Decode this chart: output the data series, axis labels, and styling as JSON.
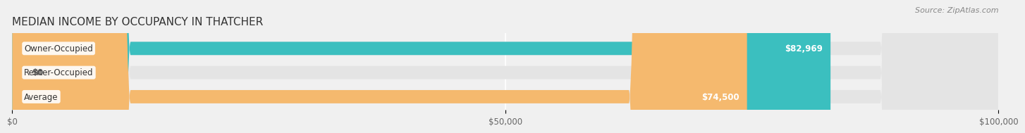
{
  "title": "MEDIAN INCOME BY OCCUPANCY IN THATCHER",
  "source": "Source: ZipAtlas.com",
  "categories": [
    "Owner-Occupied",
    "Renter-Occupied",
    "Average"
  ],
  "values": [
    82969,
    0,
    74500
  ],
  "bar_colors": [
    "#3bbfbf",
    "#c4a8d4",
    "#f5b96e"
  ],
  "bar_labels": [
    "$82,969",
    "$0",
    "$74,500"
  ],
  "xlim": [
    0,
    100000
  ],
  "xticks": [
    0,
    50000,
    100000
  ],
  "xtick_labels": [
    "$0",
    "$50,000",
    "$100,000"
  ],
  "background_color": "#f0f0f0",
  "bar_background_color": "#e4e4e4",
  "title_fontsize": 11,
  "source_fontsize": 8,
  "tick_fontsize": 8.5,
  "bar_label_fontsize": 8.5,
  "category_fontsize": 8.5
}
